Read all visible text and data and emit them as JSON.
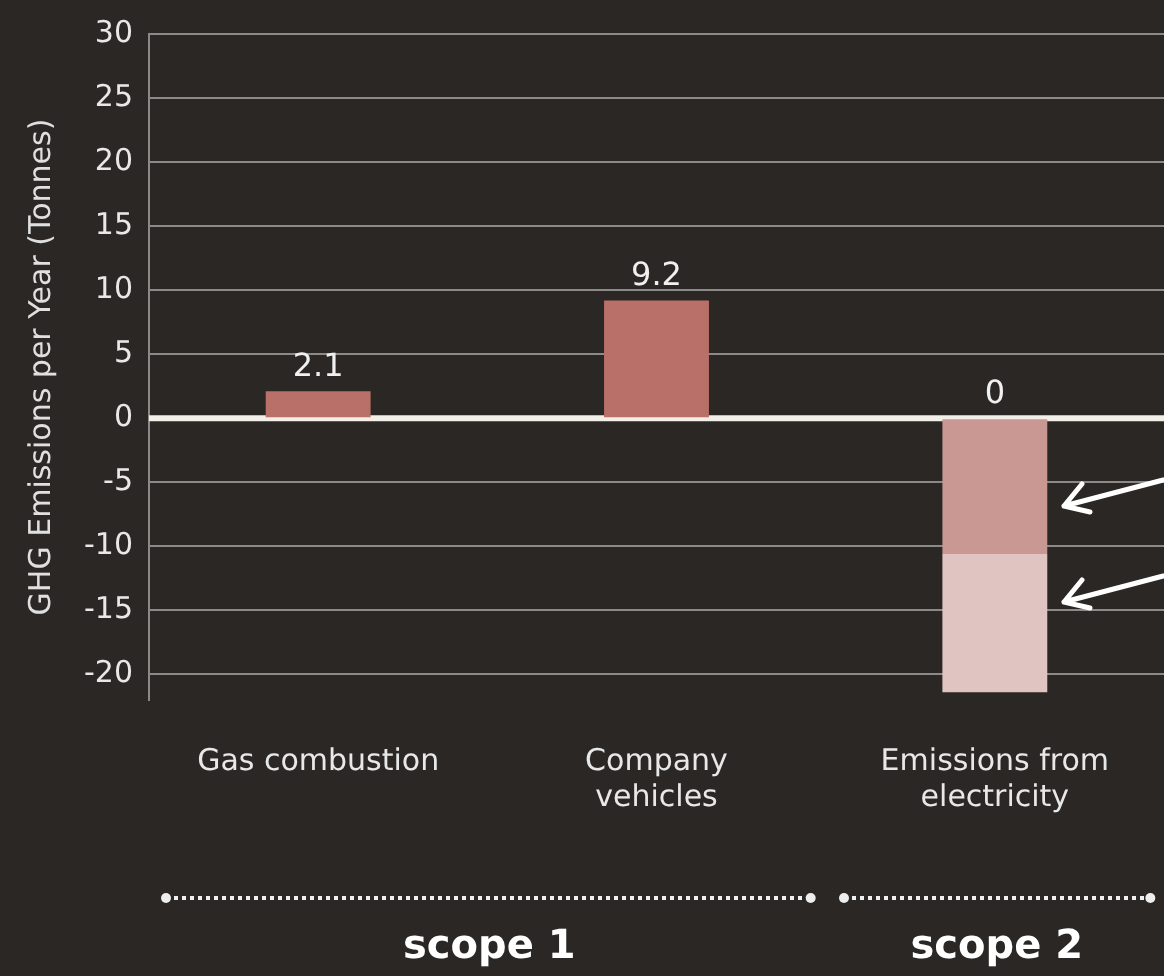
{
  "chart_data": {
    "type": "bar",
    "stacked": true,
    "ylabel": "GHG Emissions per Year (Tonnes)",
    "categories": [
      "Gas combustion",
      "Company vehicles",
      "Emissions from electricity"
    ],
    "series": [
      {
        "color": "#b87068",
        "values": [
          2.1,
          9.2,
          0
        ],
        "value_labels": [
          "2.1",
          "9.2",
          "0"
        ]
      },
      {
        "color": "#c99893",
        "values": [
          null,
          null,
          -10.6
        ]
      },
      {
        "color": "#e0c4c1",
        "values": [
          null,
          null,
          -10.8
        ]
      }
    ],
    "ylim": [
      -22,
      30
    ],
    "yticks": [
      -20,
      -15,
      -10,
      -5,
      0,
      5,
      10,
      15,
      20,
      25,
      30
    ],
    "grid": "y",
    "annotations": [
      "scope 1",
      "scope 2"
    ]
  }
}
